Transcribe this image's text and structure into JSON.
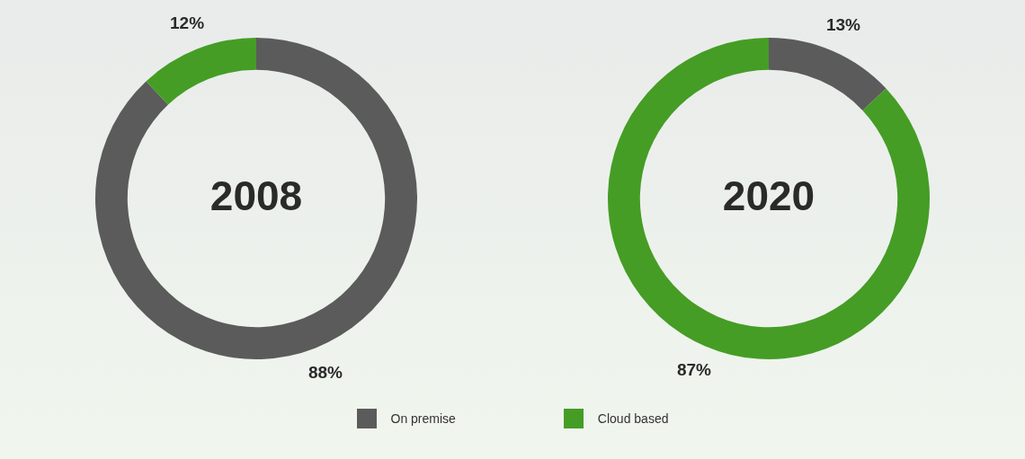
{
  "chart_data": [
    {
      "type": "donut",
      "title": "2008",
      "categories": [
        "On premise",
        "Cloud based"
      ],
      "values": [
        88,
        12
      ],
      "colors": [
        "#5b5b5b",
        "#459d25"
      ],
      "value_labels": [
        "88%",
        "12%"
      ],
      "legend": "bottom"
    },
    {
      "type": "donut",
      "title": "2020",
      "categories": [
        null,
        null
      ],
      "values": [
        13,
        87
      ],
      "colors": [
        "#5b5b5b",
        "#459d25"
      ],
      "value_labels": [
        "13%",
        "87%"
      ]
    }
  ]
}
